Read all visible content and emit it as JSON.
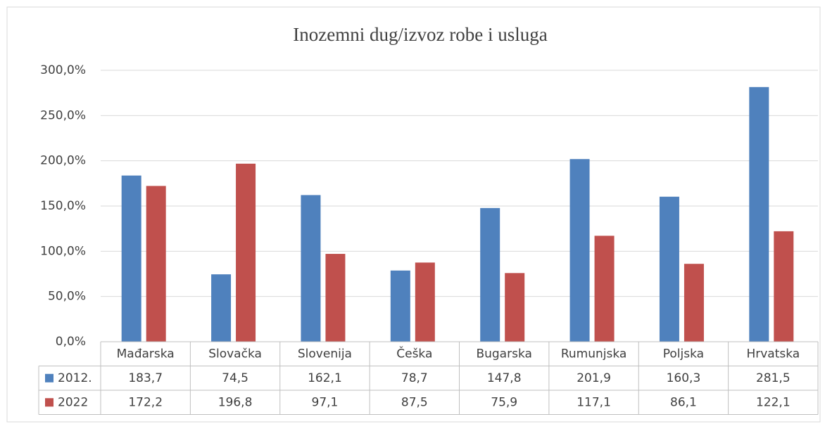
{
  "chart_data": {
    "type": "bar",
    "title": "Inozemni dug/izvoz robe i usluga",
    "categories": [
      "Mađarska",
      "Slovačka",
      "Slovenija",
      "Češka",
      "Bugarska",
      "Rumunjska",
      "Poljska",
      "Hrvatska"
    ],
    "series": [
      {
        "name": "2012.",
        "color": "#4f81bd",
        "values": [
          183.7,
          74.5,
          162.1,
          78.7,
          147.8,
          201.9,
          160.3,
          281.5
        ],
        "value_labels": [
          "183,7",
          "74,5",
          "162,1",
          "78,7",
          "147,8",
          "201,9",
          "160,3",
          "281,5"
        ]
      },
      {
        "name": "2022",
        "color": "#c0504d",
        "values": [
          172.2,
          196.8,
          97.1,
          87.5,
          75.9,
          117.1,
          86.1,
          122.1
        ],
        "value_labels": [
          "172,2",
          "196,8",
          "97,1",
          "87,5",
          "75,9",
          "117,1",
          "86,1",
          "122,1"
        ]
      }
    ],
    "ylim": [
      0,
      300
    ],
    "yticks": [
      {
        "value": 0,
        "label": "0,0%"
      },
      {
        "value": 50,
        "label": "50,0%"
      },
      {
        "value": 100,
        "label": "100,0%"
      },
      {
        "value": 150,
        "label": "150,0%"
      },
      {
        "value": 200,
        "label": "200,0%"
      },
      {
        "value": 250,
        "label": "250,0%"
      },
      {
        "value": 300,
        "label": "300,0%"
      }
    ],
    "grid": true
  }
}
